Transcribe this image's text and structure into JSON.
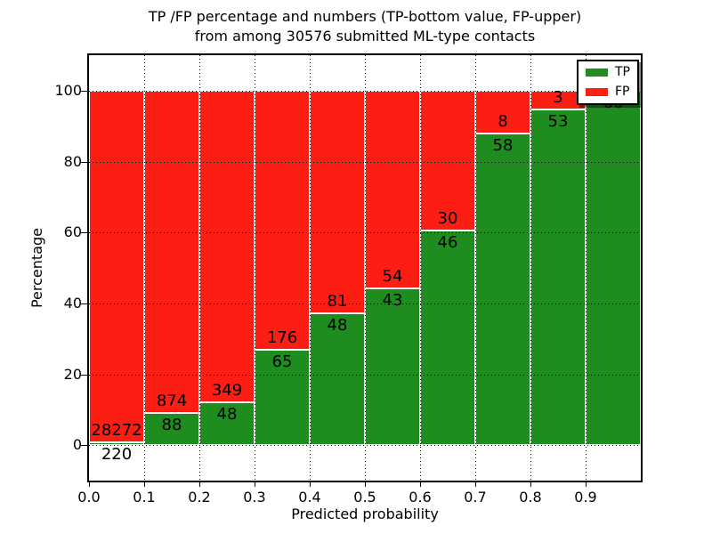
{
  "title": {
    "line1": "TP /FP percentage and numbers (TP-bottom value, FP-upper)",
    "line2": "from among 30576 submitted ML-type contacts"
  },
  "axes": {
    "xlabel": "Predicted probability",
    "ylabel": "Percentage"
  },
  "legend": {
    "position": "upper right",
    "items": [
      {
        "label": "TP",
        "color": "#1f8c1f"
      },
      {
        "label": "FP",
        "color": "#fc1d13"
      }
    ]
  },
  "chart_data": {
    "type": "bar",
    "stacked": true,
    "normalized": "percent-of-bin",
    "title": "TP /FP percentage and numbers (TP-bottom value, FP-upper) from among 30576 submitted ML-type contacts",
    "xlabel": "Predicted probability",
    "ylabel": "Percentage",
    "total_contacts": 30576,
    "xlim": [
      0.0,
      1.0
    ],
    "ylim": [
      -10,
      110
    ],
    "x_ticks": [
      "0.0",
      "0.1",
      "0.2",
      "0.3",
      "0.4",
      "0.5",
      "0.6",
      "0.7",
      "0.8",
      "0.9"
    ],
    "y_ticks": [
      0,
      20,
      40,
      60,
      80,
      100
    ],
    "bin_edges": [
      0.0,
      0.1,
      0.2,
      0.3,
      0.4,
      0.5,
      0.6,
      0.7,
      0.8,
      0.9,
      1.0
    ],
    "categories": [
      "0.0-0.1",
      "0.1-0.2",
      "0.2-0.3",
      "0.3-0.4",
      "0.4-0.5",
      "0.5-0.6",
      "0.6-0.7",
      "0.7-0.8",
      "0.8-0.9",
      "0.9-1.0"
    ],
    "grid": "dotted",
    "legend_position": "upper right",
    "series": [
      {
        "name": "TP",
        "color": "#1f8c1f",
        "counts": [
          220,
          88,
          48,
          65,
          48,
          43,
          46,
          58,
          53,
          60
        ]
      },
      {
        "name": "FP",
        "color": "#fc1d13",
        "counts": [
          28272,
          874,
          349,
          176,
          81,
          54,
          30,
          8,
          3,
          0
        ]
      }
    ]
  }
}
